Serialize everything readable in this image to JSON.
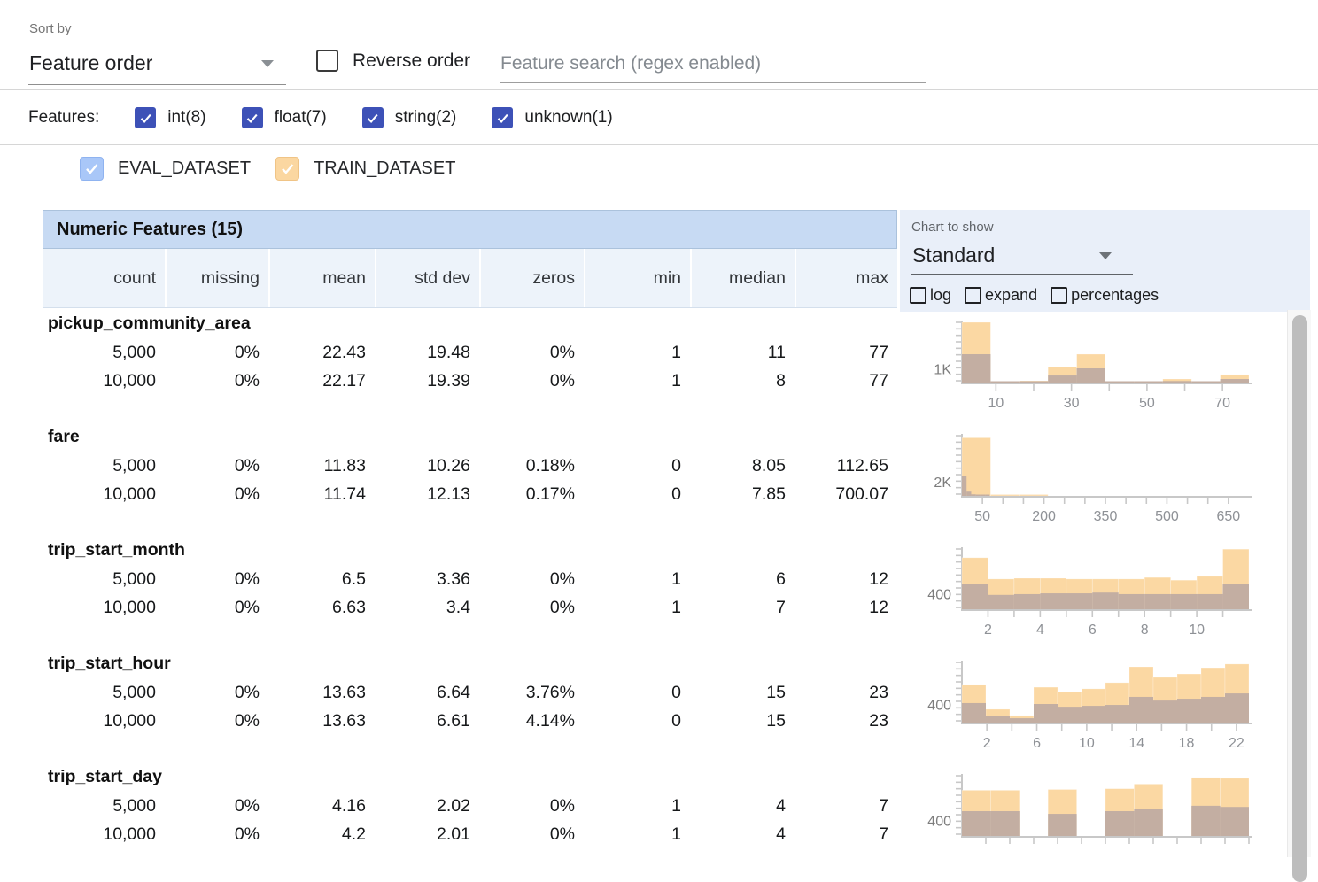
{
  "toolbar": {
    "sort_by_label": "Sort by",
    "sort_value": "Feature order",
    "reverse_label": "Reverse order",
    "search_placeholder": "Feature search (regex enabled)"
  },
  "filters": {
    "label": "Features:",
    "types": [
      {
        "label": "int(8)",
        "checked": true
      },
      {
        "label": "float(7)",
        "checked": true
      },
      {
        "label": "string(2)",
        "checked": true
      },
      {
        "label": "unknown(1)",
        "checked": true
      }
    ]
  },
  "datasets": [
    {
      "name": "EVAL_DATASET",
      "checked": true,
      "checkbox_color": "#a9c7f8",
      "checkbox_border": "#8fb3f0",
      "chip_color": "#aec7f0"
    },
    {
      "name": "TRAIN_DATASET",
      "checked": true,
      "checkbox_color": "#fbd7a1",
      "checkbox_border": "#f0c486",
      "chip_color": "#f8d49e"
    }
  ],
  "table": {
    "title": "Numeric Features (15)",
    "columns": [
      "count",
      "missing",
      "mean",
      "std dev",
      "zeros",
      "min",
      "median",
      "max"
    ]
  },
  "chart_controls": {
    "label": "Chart to show",
    "value": "Standard",
    "options": [
      {
        "label": "log",
        "checked": false
      },
      {
        "label": "expand",
        "checked": false
      },
      {
        "label": "percentages",
        "checked": false
      }
    ]
  },
  "features": [
    {
      "name": "pickup_community_area",
      "rows": [
        {
          "dataset": "EVAL_DATASET",
          "values": [
            "5,000",
            "0%",
            "22.43",
            "19.48",
            "0%",
            "1",
            "11",
            "77"
          ]
        },
        {
          "dataset": "TRAIN_DATASET",
          "values": [
            "10,000",
            "0%",
            "22.17",
            "19.39",
            "0%",
            "1",
            "8",
            "77"
          ]
        }
      ]
    },
    {
      "name": "fare",
      "rows": [
        {
          "dataset": "EVAL_DATASET",
          "values": [
            "5,000",
            "0%",
            "11.83",
            "10.26",
            "0.18%",
            "0",
            "8.05",
            "112.65"
          ]
        },
        {
          "dataset": "TRAIN_DATASET",
          "values": [
            "10,000",
            "0%",
            "11.74",
            "12.13",
            "0.17%",
            "0",
            "7.85",
            "700.07"
          ]
        }
      ]
    },
    {
      "name": "trip_start_month",
      "rows": [
        {
          "dataset": "EVAL_DATASET",
          "values": [
            "5,000",
            "0%",
            "6.5",
            "3.36",
            "0%",
            "1",
            "6",
            "12"
          ]
        },
        {
          "dataset": "TRAIN_DATASET",
          "values": [
            "10,000",
            "0%",
            "6.63",
            "3.4",
            "0%",
            "1",
            "7",
            "12"
          ]
        }
      ]
    },
    {
      "name": "trip_start_hour",
      "rows": [
        {
          "dataset": "EVAL_DATASET",
          "values": [
            "5,000",
            "0%",
            "13.63",
            "6.64",
            "3.76%",
            "0",
            "15",
            "23"
          ]
        },
        {
          "dataset": "TRAIN_DATASET",
          "values": [
            "10,000",
            "0%",
            "13.63",
            "6.61",
            "4.14%",
            "0",
            "15",
            "23"
          ]
        }
      ]
    },
    {
      "name": "trip_start_day",
      "rows": [
        {
          "dataset": "EVAL_DATASET",
          "values": [
            "5,000",
            "0%",
            "4.16",
            "2.02",
            "0%",
            "1",
            "4",
            "7"
          ]
        },
        {
          "dataset": "TRAIN_DATASET",
          "values": [
            "10,000",
            "0%",
            "4.2",
            "2.01",
            "0%",
            "1",
            "4",
            "7"
          ]
        }
      ]
    }
  ],
  "chart_data": [
    {
      "feature": "pickup_community_area",
      "type": "bar",
      "xlabel": "",
      "ylabel": "count",
      "xlim": [
        1,
        77
      ],
      "ymax": 4570,
      "y_ref": {
        "label": "1K",
        "value": 1000
      },
      "ticks": [
        10,
        20,
        30,
        40,
        50,
        60,
        70
      ],
      "tick_labels": [
        10,
        30,
        50,
        70
      ],
      "series": [
        {
          "name": "TRAIN_DATASET",
          "color": "#fbd8a3",
          "range": [
            1,
            77
          ],
          "counts": [
            4440,
            65,
            130,
            1175,
            2090,
            30,
            30,
            260,
            30,
            590
          ]
        },
        {
          "name": "EVAL_DATASET_overlap",
          "color": "#c3aea2",
          "range": [
            1,
            77
          ],
          "counts": [
            2090,
            30,
            60,
            520,
            1045,
            15,
            15,
            110,
            15,
            260
          ]
        }
      ]
    },
    {
      "feature": "fare",
      "type": "bar",
      "xlabel": "",
      "ylabel": "count",
      "xlim": [
        0,
        700
      ],
      "ymax": 8750,
      "y_ref": {
        "label": "2K",
        "value": 2000
      },
      "ticks": [
        50,
        100,
        150,
        200,
        250,
        300,
        350,
        400,
        450,
        500,
        550,
        600,
        650
      ],
      "tick_labels": [
        50,
        200,
        350,
        500,
        650
      ],
      "series": [
        {
          "name": "TRAIN_DATASET",
          "color": "#fbd8a3",
          "range": [
            0,
            700
          ],
          "counts": [
            8200,
            60,
            10,
            5,
            3,
            2,
            2,
            1,
            1,
            1
          ]
        },
        {
          "name": "EVAL_DATASET_overlap",
          "color": "#c3aea2",
          "range": [
            0,
            113
          ],
          "counts": [
            2750,
            600,
            220,
            80,
            30,
            15,
            8,
            5,
            3,
            2
          ]
        }
      ]
    },
    {
      "feature": "trip_start_month",
      "type": "bar",
      "xlabel": "",
      "ylabel": "count",
      "xlim": [
        1,
        12
      ],
      "ymax": 1600,
      "y_ref": {
        "label": "400",
        "value": 400
      },
      "ticks": [
        2,
        3,
        4,
        5,
        6,
        7,
        8,
        9,
        10,
        11
      ],
      "tick_labels": [
        2,
        4,
        6,
        8,
        10
      ],
      "series": [
        {
          "name": "TRAIN_DATASET",
          "color": "#fbd8a3",
          "range": [
            1,
            12
          ],
          "counts": [
            1330,
            780,
            800,
            800,
            780,
            780,
            780,
            820,
            750,
            850,
            1550
          ]
        },
        {
          "name": "EVAL_DATASET_overlap",
          "color": "#c3aea2",
          "range": [
            1,
            12
          ],
          "counts": [
            660,
            370,
            390,
            410,
            410,
            430,
            390,
            390,
            390,
            390,
            660
          ]
        }
      ]
    },
    {
      "feature": "trip_start_hour",
      "type": "bar",
      "xlabel": "",
      "ylabel": "count",
      "xlim": [
        0,
        23
      ],
      "ymax": 1350,
      "y_ref": {
        "label": "400",
        "value": 400
      },
      "ticks": [
        2,
        4,
        6,
        8,
        10,
        12,
        14,
        16,
        18,
        20,
        22
      ],
      "tick_labels": [
        2,
        6,
        10,
        14,
        18,
        22
      ],
      "series": [
        {
          "name": "TRAIN_DATASET",
          "color": "#fbd8a3",
          "range": [
            0,
            23
          ],
          "counts": [
            830,
            290,
            155,
            770,
            675,
            735,
            870,
            1215,
            985,
            1060,
            1195,
            1275
          ]
        },
        {
          "name": "EVAL_DATASET_overlap",
          "color": "#c3aea2",
          "range": [
            0,
            23
          ],
          "counts": [
            425,
            135,
            95,
            405,
            345,
            365,
            385,
            560,
            480,
            520,
            560,
            635
          ]
        }
      ]
    },
    {
      "feature": "trip_start_day",
      "type": "bar",
      "xlabel": "",
      "ylabel": "count",
      "xlim": [
        1,
        7
      ],
      "ymax": 1600,
      "y_ref": {
        "label": "400",
        "value": 400
      },
      "ticks": [
        1.5,
        2,
        2.5,
        3,
        3.5,
        4,
        4.5,
        5,
        5.5,
        6,
        6.5,
        7
      ],
      "tick_labels": [],
      "series": [
        {
          "name": "TRAIN_DATASET",
          "color": "#fbd8a3",
          "range": [
            1,
            7
          ],
          "counts": [
            1180,
            1180,
            0,
            1200,
            0,
            1220,
            1340,
            0,
            1510,
            1490
          ]
        },
        {
          "name": "EVAL_DATASET_overlap",
          "color": "#c3aea2",
          "range": [
            1,
            7
          ],
          "counts": [
            640,
            640,
            0,
            570,
            0,
            640,
            690,
            0,
            780,
            750
          ]
        }
      ]
    }
  ],
  "colors": {
    "accent_indigo": "#3d51b7",
    "header_blue": "#c7daf3",
    "subheader_blue": "#edf3fa",
    "panel_blue": "#e9eff9",
    "bar_train": "#fbd8a3",
    "bar_overlap": "#c3aea2",
    "axis_gray": "#c8c8c8",
    "tick_text": "#8e9196"
  }
}
